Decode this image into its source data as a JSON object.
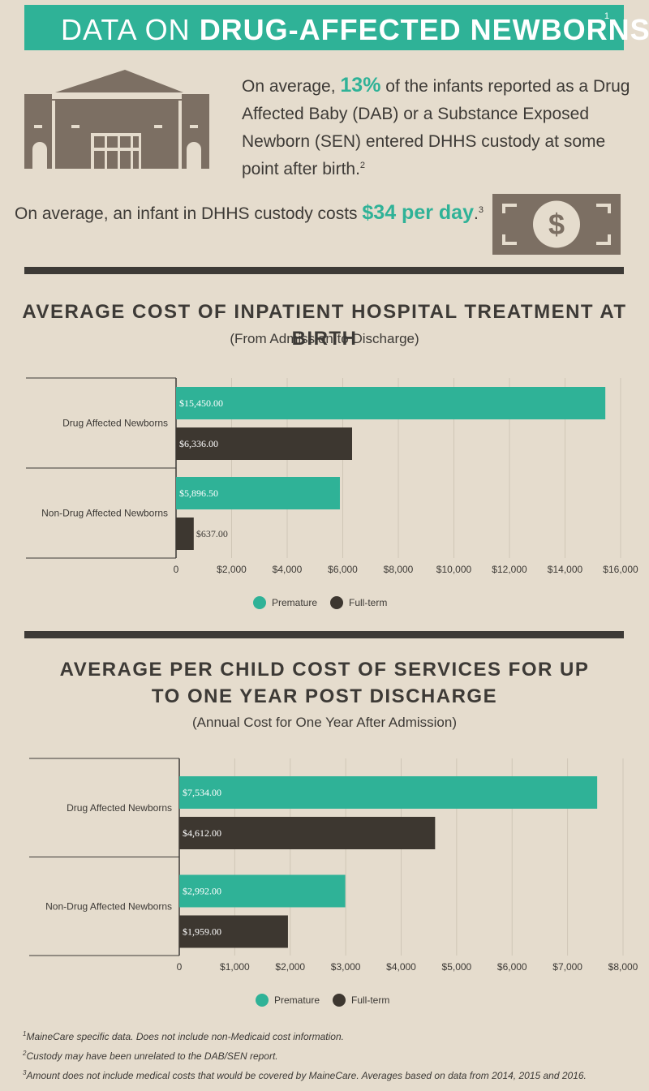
{
  "header": {
    "title_light": "DATA ON ",
    "title_bold": "DRUG-AFFECTED NEWBORNS",
    "title_note": "1"
  },
  "intro": {
    "pre": "On average, ",
    "highlight": "13%",
    "post": " of the infants reported as a Drug Affected Baby (DAB) or a Substance Exposed Newborn (SEN) entered DHHS custody at some point after birth.",
    "note": "2"
  },
  "cost": {
    "pre": "On average, an infant in DHHS custody costs ",
    "highlight": "$34 per day",
    "post": ".",
    "note": "3"
  },
  "icons": {
    "building": "building-icon",
    "money": "dollar-bill-icon"
  },
  "colors": {
    "teal": "#2fb297",
    "dark": "#3d3730",
    "brown": "#7c6f63",
    "bg": "#e5dccd"
  },
  "chart_data": [
    {
      "type": "bar",
      "orientation": "horizontal",
      "title": "AVERAGE COST OF INPATIENT HOSPITAL TREATMENT AT BIRTH",
      "subtitle": "(From Admission to Discharge)",
      "categories": [
        "Drug Affected Newborns",
        "Non-Drug Affected Newborns"
      ],
      "series": [
        {
          "name": "Premature",
          "values": [
            15450,
            5896.5
          ],
          "labels": [
            "$15,450.00",
            "$5,896.50"
          ],
          "color": "#2fb297"
        },
        {
          "name": "Full-term",
          "values": [
            6336,
            637
          ],
          "labels": [
            "$6,336.00",
            "$637.00"
          ],
          "color": "#3d3730"
        }
      ],
      "ticks": [
        0,
        2000,
        4000,
        6000,
        8000,
        10000,
        12000,
        14000,
        16000
      ],
      "tick_labels": [
        "0",
        "$2,000",
        "$4,000",
        "$6,000",
        "$8,000",
        "$10,000",
        "$12,000",
        "$14,000",
        "$16,000"
      ],
      "xlim": [
        0,
        16000
      ],
      "grid": true,
      "legend": "bottom"
    },
    {
      "type": "bar",
      "orientation": "horizontal",
      "title": "AVERAGE PER CHILD COST OF SERVICES FOR UP TO ONE YEAR POST DISCHARGE",
      "subtitle": "(Annual Cost for One Year After Admission)",
      "categories": [
        "Drug Affected Newborns",
        "Non-Drug Affected Newborns"
      ],
      "series": [
        {
          "name": "Premature",
          "values": [
            7534,
            2992
          ],
          "labels": [
            "$7,534.00",
            "$2,992.00"
          ],
          "color": "#2fb297"
        },
        {
          "name": "Full-term",
          "values": [
            4612,
            1959
          ],
          "labels": [
            "$4,612.00",
            "$1,959.00"
          ],
          "color": "#3d3730"
        }
      ],
      "ticks": [
        0,
        1000,
        2000,
        3000,
        4000,
        5000,
        6000,
        7000,
        8000
      ],
      "tick_labels": [
        "0",
        "$1,000",
        "$2,000",
        "$3,000",
        "$4,000",
        "$5,000",
        "$6,000",
        "$7,000",
        "$8,000"
      ],
      "xlim": [
        0,
        8000
      ],
      "grid": true,
      "legend": "bottom"
    }
  ],
  "footnotes": [
    {
      "num": "1",
      "text": "MaineCare specific data. Does not include non-Medicaid cost information."
    },
    {
      "num": "2",
      "text": "Custody may have been unrelated to the DAB/SEN report."
    },
    {
      "num": "3",
      "text": "Amount does not include medical costs that would be covered by MaineCare. Averages based on data from 2014, 2015 and 2016."
    }
  ]
}
